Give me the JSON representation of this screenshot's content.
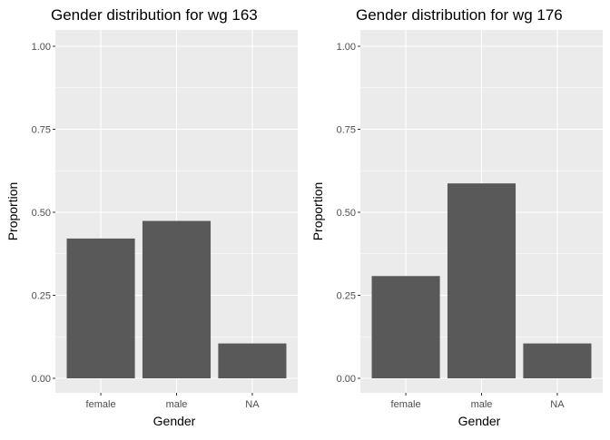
{
  "colors": {
    "panel_background": "#ebebeb",
    "grid_major": "#ffffff",
    "bar_fill": "#595959",
    "tick_text": "#4d4d4d",
    "tick_mark": "#333333"
  },
  "chart_data": [
    {
      "type": "bar",
      "title": "Gender distribution for wg 163",
      "xlabel": "Gender",
      "ylabel": "Proportion",
      "categories": [
        "female",
        "male",
        "NA"
      ],
      "values": [
        0.421,
        0.474,
        0.105
      ],
      "ylim": [
        0,
        1
      ],
      "yticks": [
        "0.00",
        "0.25",
        "0.50",
        "0.75",
        "1.00"
      ],
      "grid": true,
      "legend": "none"
    },
    {
      "type": "bar",
      "title": "Gender distribution for wg 176",
      "xlabel": "Gender",
      "ylabel": "Proportion",
      "categories": [
        "female",
        "male",
        "NA"
      ],
      "values": [
        0.308,
        0.587,
        0.105
      ],
      "ylim": [
        0,
        1
      ],
      "yticks": [
        "0.00",
        "0.25",
        "0.50",
        "0.75",
        "1.00"
      ],
      "grid": true,
      "legend": "none"
    }
  ]
}
